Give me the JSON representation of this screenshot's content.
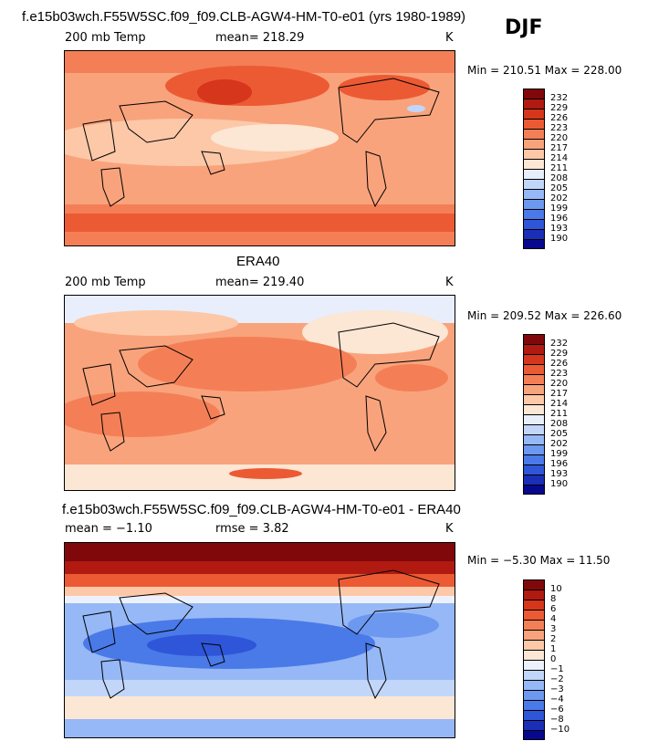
{
  "season": "DJF",
  "colors": {
    "abs_scale": [
      "#08088f",
      "#1a2eb8",
      "#2f56d8",
      "#4a7ae8",
      "#6c98f0",
      "#96b8f6",
      "#c2d6fa",
      "#e8eefc",
      "#fce6d4",
      "#fcc8a8",
      "#f9a37c",
      "#f47f56",
      "#ec5a34",
      "#d6361c",
      "#b01a10",
      "#80080a"
    ],
    "diff_scale": [
      "#08088f",
      "#1a2eb8",
      "#2f56d8",
      "#4a7ae8",
      "#6c98f0",
      "#96b8f6",
      "#c2d6fa",
      "#ecf1fc",
      "#fce6d4",
      "#fcc8a8",
      "#f9a37c",
      "#f47f56",
      "#ec5a34",
      "#d6361c",
      "#b01a10",
      "#80080a"
    ]
  },
  "chart_data": [
    {
      "type": "heatmap",
      "title": "f.e15b03wch.F55W5SC.f09_f09.CLB-AGW4-HM-T0-e01 (yrs 1980-1989)",
      "left_label": "200 mb Temp",
      "mean_label": "mean= 218.29",
      "units": "K",
      "minmax": "Min = 210.51 Max = 228.00",
      "levels": [
        "232",
        "229",
        "226",
        "223",
        "220",
        "217",
        "214",
        "211",
        "208",
        "205",
        "202",
        "199",
        "196",
        "193",
        "190"
      ]
    },
    {
      "type": "heatmap",
      "title": "ERA40",
      "left_label": "200 mb Temp",
      "mean_label": "mean= 219.40",
      "units": "K",
      "minmax": "Min = 209.52 Max = 226.60",
      "levels": [
        "232",
        "229",
        "226",
        "223",
        "220",
        "217",
        "214",
        "211",
        "208",
        "205",
        "202",
        "199",
        "196",
        "193",
        "190"
      ]
    },
    {
      "type": "heatmap",
      "title": "f.e15b03wch.F55W5SC.f09_f09.CLB-AGW4-HM-T0-e01 - ERA40",
      "left_label": "mean = −1.10",
      "mean_label": "rmse = 3.82",
      "units": "K",
      "minmax": "Min = −5.30 Max = 11.50",
      "levels": [
        "10",
        "8",
        "6",
        "4",
        "3",
        "2",
        "1",
        "0",
        "−1",
        "−2",
        "−3",
        "−4",
        "−6",
        "−8",
        "−10"
      ]
    }
  ]
}
